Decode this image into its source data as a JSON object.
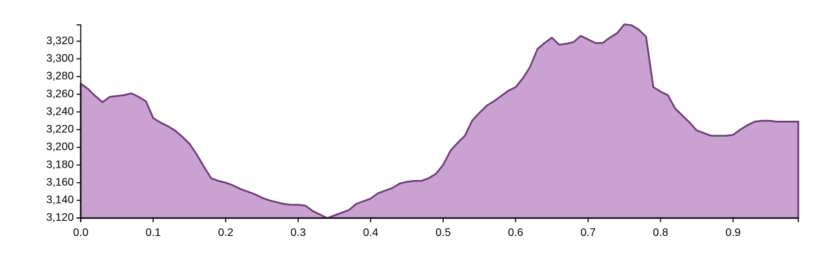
{
  "chart_data": {
    "type": "area",
    "title": "",
    "xlabel": "",
    "ylabel": "",
    "xlim": [
      0,
      0.99
    ],
    "ylim": [
      3120,
      3340
    ],
    "grid": false,
    "x_ticks": [
      "0.0",
      "0.1",
      "0.2",
      "0.3",
      "0.4",
      "0.5",
      "0.6",
      "0.7",
      "0.8",
      "0.9"
    ],
    "y_ticks": [
      "3,120",
      "3,140",
      "3,160",
      "3,180",
      "3,200",
      "3,220",
      "3,240",
      "3,260",
      "3,280",
      "3,300",
      "3,320"
    ],
    "fill_color": "#c9a2d2",
    "line_color": "#6a3b73",
    "series": [
      {
        "x": [
          0,
          0.01,
          0.02,
          0.03,
          0.04,
          0.05,
          0.06,
          0.07,
          0.08,
          0.09,
          0.1,
          0.11,
          0.12,
          0.13,
          0.14,
          0.15,
          0.16,
          0.17,
          0.18,
          0.19,
          0.2,
          0.21,
          0.22,
          0.23,
          0.24,
          0.25,
          0.26,
          0.27,
          0.28,
          0.29,
          0.3,
          0.31,
          0.32,
          0.33,
          0.34,
          0.35,
          0.36,
          0.37,
          0.38,
          0.39,
          0.4,
          0.41,
          0.42,
          0.43,
          0.44,
          0.45,
          0.46,
          0.47,
          0.48,
          0.49,
          0.5,
          0.51,
          0.52,
          0.53,
          0.54,
          0.55,
          0.56,
          0.57,
          0.58,
          0.59,
          0.6,
          0.61,
          0.62,
          0.63,
          0.64,
          0.65,
          0.66,
          0.67,
          0.68,
          0.69,
          0.7,
          0.71,
          0.72,
          0.73,
          0.74,
          0.75,
          0.76,
          0.77,
          0.78,
          0.79,
          0.8,
          0.81,
          0.82,
          0.83,
          0.84,
          0.85,
          0.86,
          0.87,
          0.88,
          0.89,
          0.9,
          0.91,
          0.92,
          0.93,
          0.94,
          0.95,
          0.96,
          0.97,
          0.98,
          0.99
        ],
        "values": [
          3272,
          3266,
          3258,
          3251,
          3257,
          3258,
          3259,
          3261,
          3257,
          3252,
          3233,
          3228,
          3224,
          3219,
          3212,
          3204,
          3192,
          3178,
          3165,
          3162,
          3160,
          3157,
          3153,
          3150,
          3147,
          3143,
          3140,
          3138,
          3136,
          3135,
          3135,
          3134,
          3128,
          3124,
          3120,
          3123,
          3126,
          3129,
          3136,
          3139,
          3142,
          3148,
          3151,
          3154,
          3159,
          3161,
          3162,
          3162,
          3165,
          3170,
          3180,
          3196,
          3205,
          3213,
          3230,
          3239,
          3247,
          3252,
          3258,
          3264,
          3268,
          3278,
          3291,
          3311,
          3318,
          3324,
          3316,
          3317,
          3319,
          3326,
          3322,
          3318,
          3318,
          3324,
          3329,
          3339,
          3338,
          3333,
          3325,
          3268,
          3263,
          3259,
          3244,
          3236,
          3228,
          3219,
          3216,
          3213,
          3213,
          3213,
          3214,
          3220,
          3225,
          3229,
          3230,
          3230,
          3229,
          3229,
          3229,
          3229
        ]
      }
    ]
  }
}
